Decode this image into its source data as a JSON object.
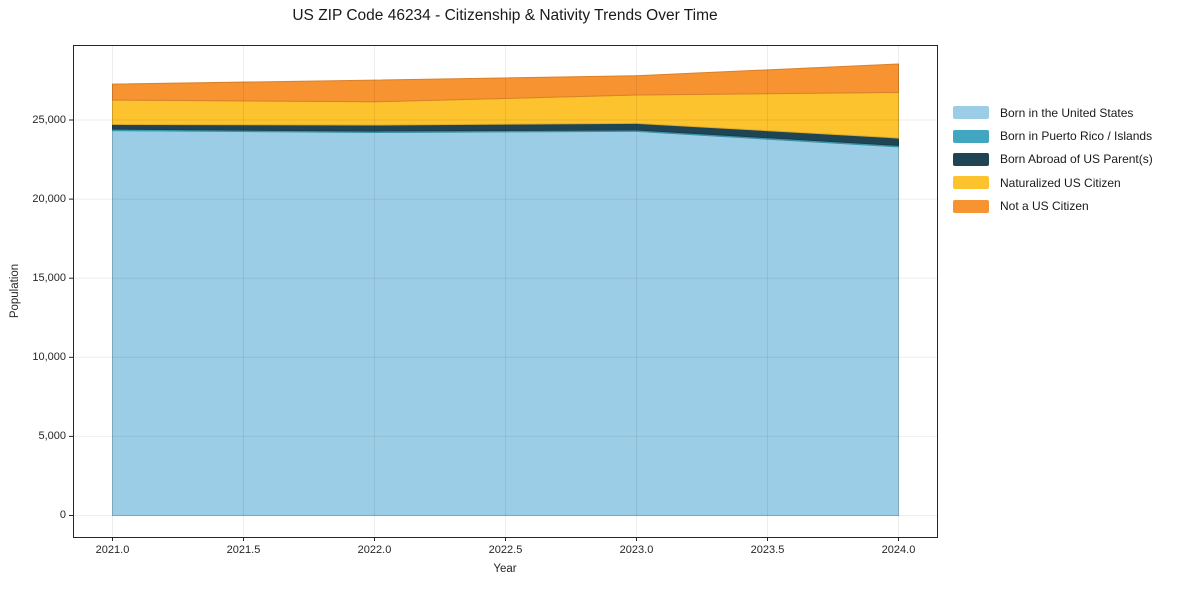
{
  "chart_data": {
    "type": "area",
    "stacked": true,
    "title": "US ZIP Code 46234 - Citizenship & Nativity Trends Over Time",
    "xlabel": "Year",
    "ylabel": "Population",
    "x": [
      2021,
      2022,
      2023,
      2024
    ],
    "series": [
      {
        "name": "Born in the United States",
        "color": "#9BCEE6",
        "values": [
          24330,
          24210,
          24280,
          23300
        ]
      },
      {
        "name": "Born in Puerto Rico / Islands",
        "color": "#41A6BF",
        "values": [
          90,
          90,
          90,
          90
        ]
      },
      {
        "name": "Born Abroad of US Parent(s)",
        "color": "#1F4554",
        "values": [
          300,
          380,
          420,
          470
        ]
      },
      {
        "name": "Naturalized US Citizen",
        "color": "#FCC32F",
        "values": [
          1540,
          1470,
          1790,
          2880
        ]
      },
      {
        "name": "Not a US Citizen",
        "color": "#F79330",
        "values": [
          1010,
          1370,
          1220,
          1800
        ]
      }
    ],
    "totals": [
      27270,
      27520,
      27800,
      28540
    ],
    "x_ticks": [
      "2021.0",
      "2021.5",
      "2022.0",
      "2022.5",
      "2023.0",
      "2023.5",
      "2024.0"
    ],
    "x_tick_values": [
      2021,
      2021.5,
      2022,
      2022.5,
      2023,
      2023.5,
      2024
    ],
    "y_ticks": [
      "0",
      "5,000",
      "10,000",
      "15,000",
      "20,000",
      "25,000"
    ],
    "y_tick_values": [
      0,
      5000,
      10000,
      15000,
      20000,
      25000
    ],
    "xlim": [
      2020.85,
      2024.15
    ],
    "ylim": [
      -1360,
      29740
    ],
    "grid": true,
    "legend_position": "right",
    "axis_color": "#262626",
    "grid_color": "rgba(0,0,0,0.07)"
  }
}
